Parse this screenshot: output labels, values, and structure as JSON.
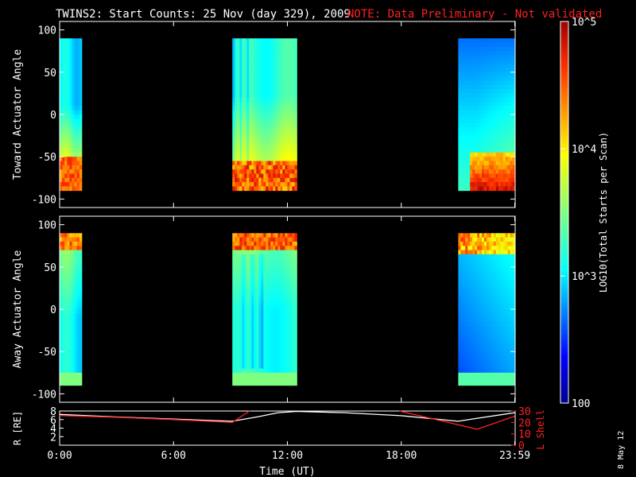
{
  "title": "TWINS2: Start Counts: 25 Nov (day 329), 2009",
  "note": "NOTE: Data Preliminary - Not validated",
  "stamp": "8 May 12",
  "colors": {
    "note": "#ff2020",
    "lshell": "#ff2020",
    "radius": "#ffffff",
    "axis": "#ffffff"
  },
  "chart_data": [
    {
      "name_id": "toward-panel",
      "type": "heatmap",
      "ylabel": "Toward Actuator Angle",
      "xlim": [
        0,
        24
      ],
      "ylim": [
        -110,
        110
      ],
      "yticks": [
        100,
        50,
        0,
        -50,
        -100
      ],
      "y_extent": [
        -90,
        90
      ],
      "data_blocks": [
        {
          "x_start": 0.0,
          "x_end": 1.17
        },
        {
          "x_start": 9.1,
          "x_end": 12.5
        },
        {
          "x_start": 21.0,
          "x_end": 23.98
        }
      ]
    },
    {
      "name_id": "away-panel",
      "type": "heatmap",
      "ylabel": "Away Actuator Angle",
      "xlim": [
        0,
        24
      ],
      "ylim": [
        -110,
        110
      ],
      "yticks": [
        100,
        50,
        0,
        -50,
        -100
      ],
      "y_extent": [
        -90,
        90
      ],
      "data_blocks": [
        {
          "x_start": 0.0,
          "x_end": 1.17
        },
        {
          "x_start": 9.1,
          "x_end": 12.5
        },
        {
          "x_start": 21.0,
          "x_end": 23.98
        }
      ]
    },
    {
      "name_id": "orbit-panel",
      "type": "line",
      "ylabel_left": "R [RE]",
      "ylabel_right": "L Shell",
      "xlabel": "Time (UT)",
      "xlim": [
        0,
        24
      ],
      "xticks": [
        {
          "value": 0,
          "label": "0:00"
        },
        {
          "value": 6,
          "label": "6:00"
        },
        {
          "value": 12,
          "label": "12:00"
        },
        {
          "value": 18,
          "label": "18:00"
        },
        {
          "value": 23.98,
          "label": "23:59"
        }
      ],
      "ylim_left": [
        0,
        8
      ],
      "yticks_left": [
        8,
        6,
        4,
        2
      ],
      "ylim_right": [
        0,
        30
      ],
      "yticks_right": [
        30,
        20,
        10,
        0
      ],
      "series": [
        {
          "name": "R",
          "color": "#ffffff",
          "x": [
            0,
            3,
            6,
            9.1,
            10.5,
            11.5,
            12.5,
            15,
            18,
            21,
            22,
            23.98
          ],
          "y": [
            7.2,
            6.6,
            6.1,
            5.6,
            6.7,
            7.6,
            7.9,
            7.6,
            6.9,
            5.6,
            6.3,
            7.6
          ]
        },
        {
          "name": "L",
          "color": "#ff2020",
          "x": [
            0,
            3,
            6,
            9.1,
            10.0
          ],
          "y": [
            26,
            24.5,
            22.5,
            20,
            30
          ]
        },
        {
          "name": "L2",
          "color": "#ff2020",
          "x": [
            17.9,
            22.0,
            23.98
          ],
          "y": [
            30,
            14,
            25.5
          ]
        }
      ]
    }
  ],
  "colorbar": {
    "label": "LOG10(Total Starts per Scan)",
    "range": [
      100,
      100000
    ],
    "scale": "log",
    "ticks": [
      {
        "value": 100000,
        "label": "10^5"
      },
      {
        "value": 10000,
        "label": "10^4"
      },
      {
        "value": 1000,
        "label": "10^3"
      },
      {
        "value": 100,
        "label": "100"
      }
    ]
  }
}
